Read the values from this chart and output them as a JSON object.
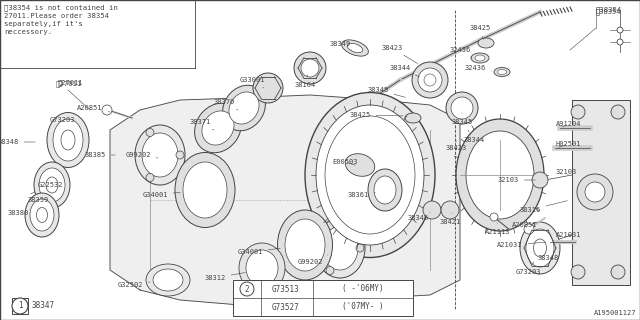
{
  "bg_color": "#f2f2f2",
  "line_color": "#444444",
  "diagram_id": "A195001127",
  "note_text": "‸38354 is not contained in\n27011.Please order 38354\nseparately,if it's\nneccessory.",
  "figsize": [
    6.4,
    3.2
  ],
  "dpi": 100,
  "xlim": [
    0,
    640
  ],
  "ylim": [
    0,
    320
  ]
}
